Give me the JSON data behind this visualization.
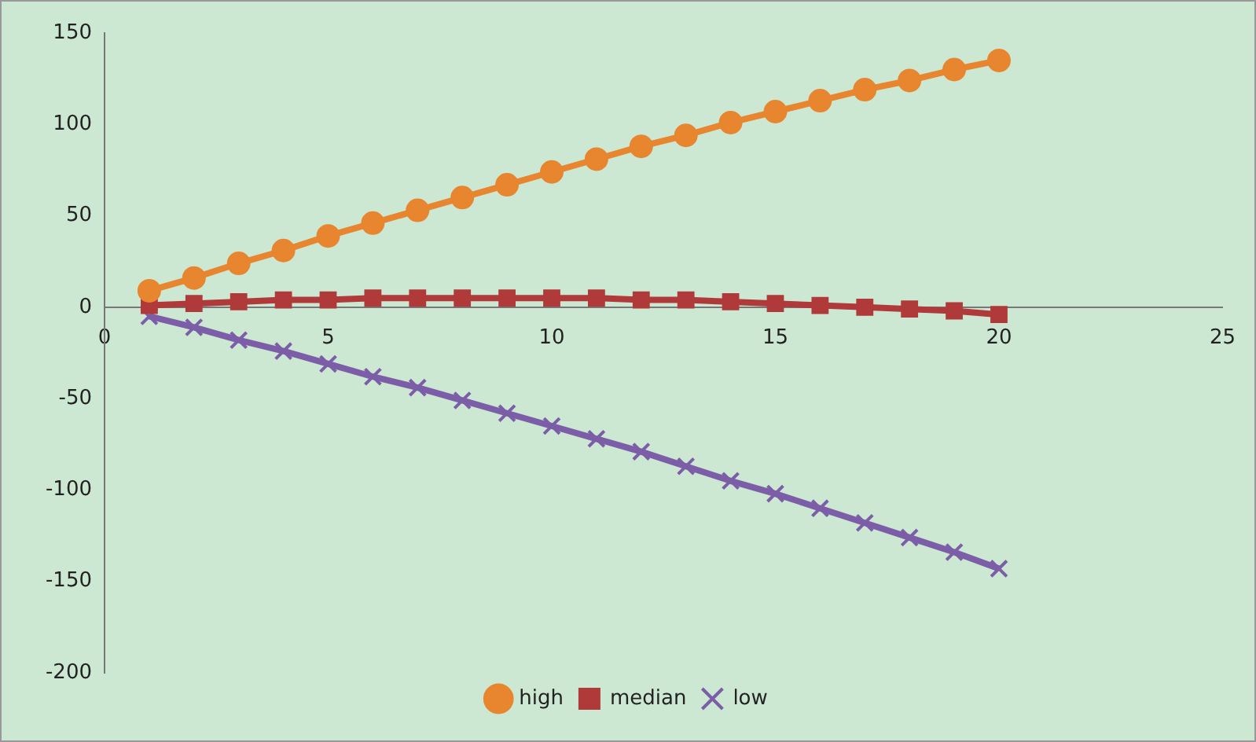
{
  "chart_data": {
    "type": "line",
    "x": [
      1,
      2,
      3,
      4,
      5,
      6,
      7,
      8,
      9,
      10,
      11,
      12,
      13,
      14,
      15,
      16,
      17,
      18,
      19,
      20
    ],
    "xlim": [
      0,
      25
    ],
    "xticks": [
      0,
      5,
      10,
      15,
      20,
      25
    ],
    "ylim": [
      -200,
      150
    ],
    "yticks": [
      -200,
      -150,
      -100,
      -50,
      0,
      50,
      100,
      150
    ],
    "grid": false,
    "legend": "bottom",
    "line_style": "solid",
    "series": [
      {
        "name": "high",
        "color": "#e8852f",
        "marker": "circle",
        "values": [
          9,
          16,
          24,
          31,
          39,
          46,
          53,
          60,
          67,
          74,
          81,
          88,
          94,
          101,
          107,
          113,
          119,
          124,
          130,
          135
        ]
      },
      {
        "name": "median",
        "color": "#b03a3a",
        "marker": "square",
        "values": [
          1,
          2,
          3,
          4,
          4,
          5,
          5,
          5,
          5,
          5,
          5,
          4,
          4,
          3,
          2,
          1,
          0,
          -1,
          -2,
          -4
        ]
      },
      {
        "name": "low",
        "color": "#7b5ea7",
        "marker": "cross",
        "values": [
          -5,
          -11,
          -18,
          -24,
          -31,
          -38,
          -44,
          -51,
          -58,
          -65,
          -72,
          -79,
          -87,
          -95,
          -102,
          -110,
          -118,
          -126,
          -134,
          -143
        ]
      }
    ]
  }
}
